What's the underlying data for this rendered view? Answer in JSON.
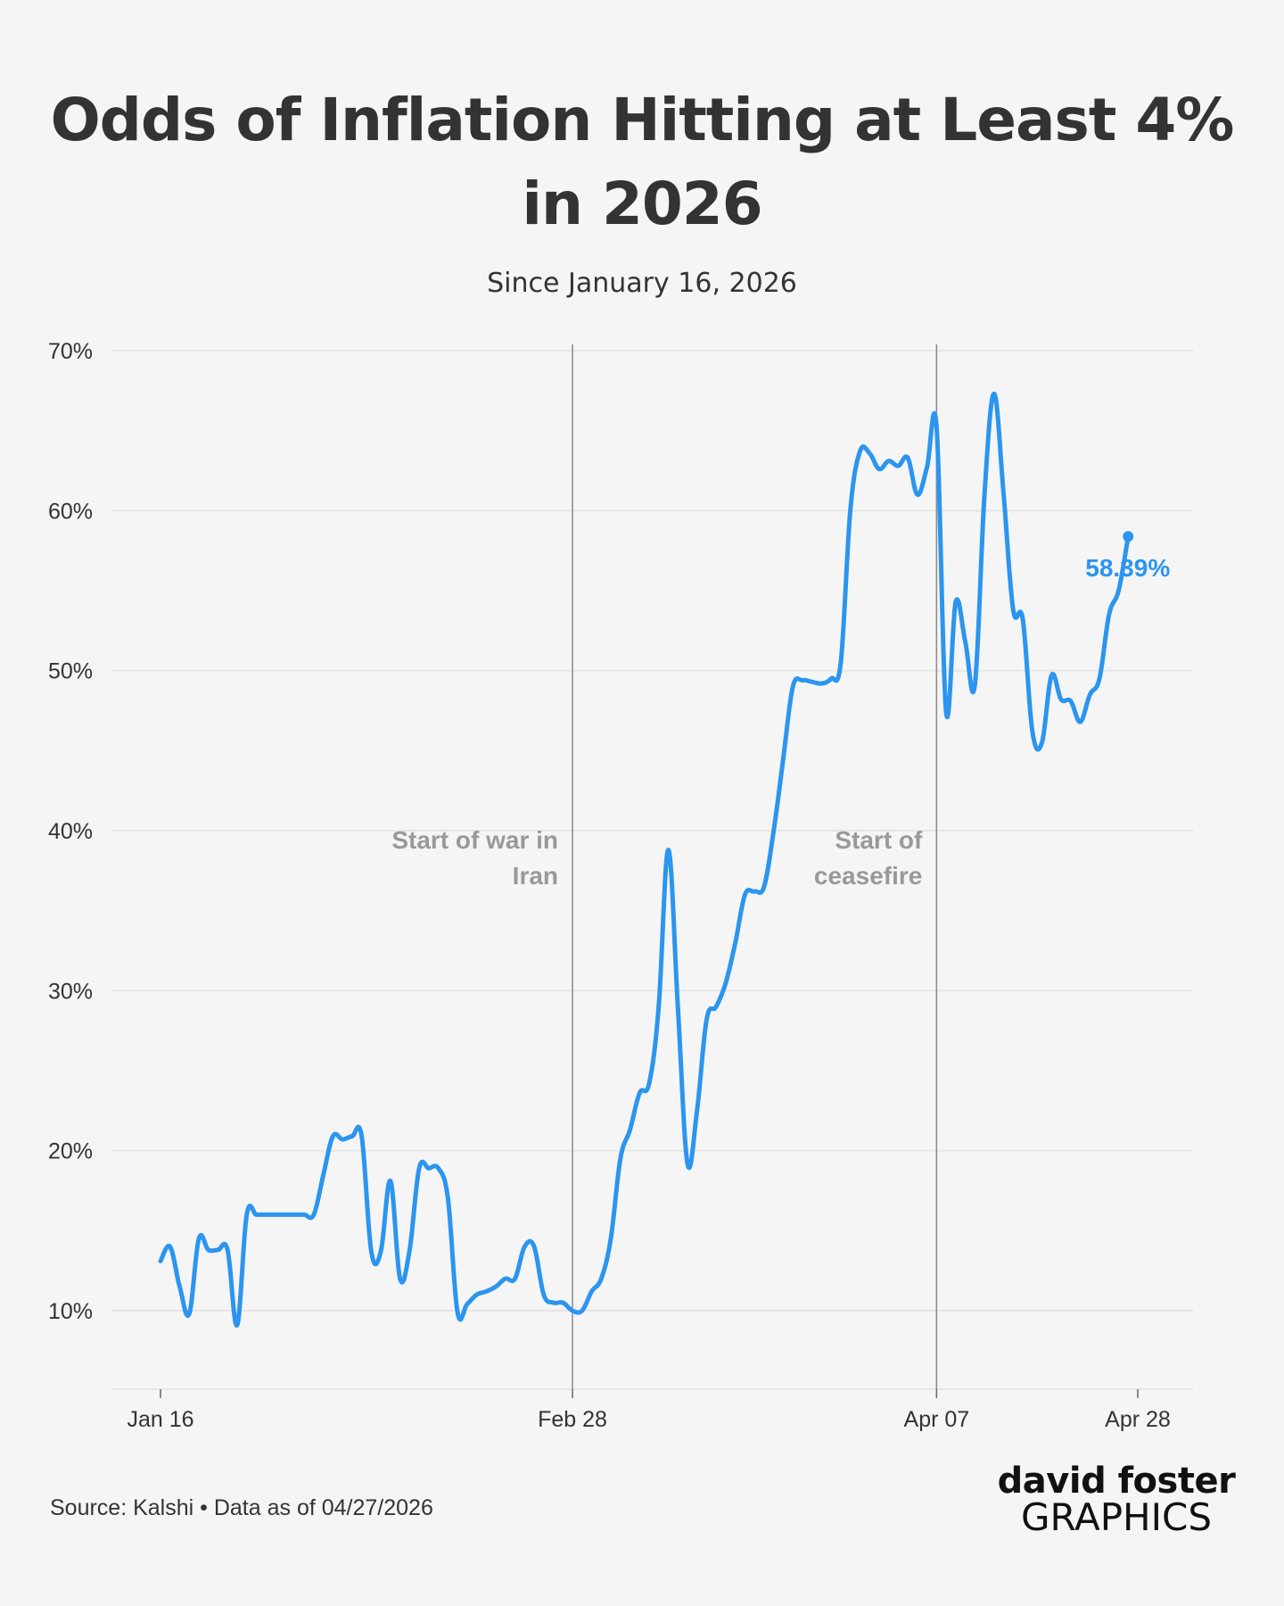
{
  "title": "Odds of Inflation Hitting at Least 4% in 2026",
  "subtitle": "Since January 16, 2026",
  "footer": {
    "source": "Source: Kalshi • Data as of 04/27/2026"
  },
  "brand": {
    "line1": "david foster",
    "line2": "GRAPHICS"
  },
  "colors": {
    "line": "#2b95ef",
    "grid": "#e6e6e6",
    "annotation_text": "#999999",
    "annotation_line": "#8a8a8a",
    "background": "#f5f5f5"
  },
  "chart_data": {
    "type": "line",
    "title": "Odds of Inflation Hitting at Least 4% in 2026",
    "subtitle": "Since January 16, 2026",
    "xlabel": "",
    "ylabel": "",
    "x_range": [
      "2026-01-16",
      "2026-04-28"
    ],
    "ylim": [
      5,
      70
    ],
    "y_ticks": [
      10,
      20,
      30,
      40,
      50,
      60,
      70
    ],
    "y_tick_labels": [
      "10%",
      "20%",
      "30%",
      "40%",
      "50%",
      "60%",
      "70%"
    ],
    "x_ticks": [
      "2026-01-16",
      "2026-02-28",
      "2026-04-07",
      "2026-04-28"
    ],
    "x_tick_labels": [
      "Jan 16",
      "Feb 28",
      "Apr 07",
      "Apr 28"
    ],
    "grid": true,
    "annotations": [
      {
        "date": "2026-02-28",
        "lines": [
          "Start of war in",
          "Iran"
        ]
      },
      {
        "date": "2026-04-07",
        "lines": [
          "Start of",
          "ceasefire"
        ]
      }
    ],
    "end_label": "58.39%",
    "series": [
      {
        "points": [
          [
            "2026-01-16",
            13.1
          ],
          [
            "2026-01-17",
            14.0
          ],
          [
            "2026-01-18",
            11.5
          ],
          [
            "2026-01-19",
            9.8
          ],
          [
            "2026-01-20",
            14.5
          ],
          [
            "2026-01-21",
            13.8
          ],
          [
            "2026-01-22",
            13.8
          ],
          [
            "2026-01-23",
            13.8
          ],
          [
            "2026-01-24",
            9.1
          ],
          [
            "2026-01-25",
            16.0
          ],
          [
            "2026-01-26",
            16.0
          ],
          [
            "2026-01-27",
            16.0
          ],
          [
            "2026-01-28",
            16.0
          ],
          [
            "2026-01-29",
            16.0
          ],
          [
            "2026-01-30",
            16.0
          ],
          [
            "2026-01-31",
            16.0
          ],
          [
            "2026-02-01",
            16.0
          ],
          [
            "2026-02-02",
            18.5
          ],
          [
            "2026-02-03",
            20.9
          ],
          [
            "2026-02-04",
            20.7
          ],
          [
            "2026-02-05",
            20.9
          ],
          [
            "2026-02-06",
            20.9
          ],
          [
            "2026-02-07",
            13.7
          ],
          [
            "2026-02-08",
            13.7
          ],
          [
            "2026-02-09",
            18.1
          ],
          [
            "2026-02-10",
            12.0
          ],
          [
            "2026-02-11",
            13.8
          ],
          [
            "2026-02-12",
            18.9
          ],
          [
            "2026-02-13",
            18.9
          ],
          [
            "2026-02-14",
            18.9
          ],
          [
            "2026-02-15",
            17.0
          ],
          [
            "2026-02-16",
            9.9
          ],
          [
            "2026-02-17",
            10.4
          ],
          [
            "2026-02-18",
            11.0
          ],
          [
            "2026-02-19",
            11.2
          ],
          [
            "2026-02-20",
            11.5
          ],
          [
            "2026-02-21",
            12.0
          ],
          [
            "2026-02-22",
            12.0
          ],
          [
            "2026-02-23",
            14.0
          ],
          [
            "2026-02-24",
            14.0
          ],
          [
            "2026-02-25",
            11.0
          ],
          [
            "2026-02-26",
            10.5
          ],
          [
            "2026-02-27",
            10.5
          ],
          [
            "2026-02-28",
            10.0
          ],
          [
            "2026-03-01",
            10.0
          ],
          [
            "2026-03-02",
            11.2
          ],
          [
            "2026-03-03",
            12.0
          ],
          [
            "2026-03-04",
            14.5
          ],
          [
            "2026-03-05",
            19.5
          ],
          [
            "2026-03-06",
            21.3
          ],
          [
            "2026-03-07",
            23.6
          ],
          [
            "2026-03-08",
            24.2
          ],
          [
            "2026-03-09",
            29.0
          ],
          [
            "2026-03-10",
            38.8
          ],
          [
            "2026-03-11",
            29.0
          ],
          [
            "2026-03-12",
            19.2
          ],
          [
            "2026-03-13",
            22.5
          ],
          [
            "2026-03-14",
            28.2
          ],
          [
            "2026-03-15",
            29.0
          ],
          [
            "2026-03-16",
            30.5
          ],
          [
            "2026-03-17",
            33.0
          ],
          [
            "2026-03-18",
            36.0
          ],
          [
            "2026-03-19",
            36.2
          ],
          [
            "2026-03-20",
            36.5
          ],
          [
            "2026-03-21",
            40.0
          ],
          [
            "2026-03-22",
            44.5
          ],
          [
            "2026-03-23",
            49.0
          ],
          [
            "2026-03-24",
            49.4
          ],
          [
            "2026-03-25",
            49.3
          ],
          [
            "2026-03-26",
            49.2
          ],
          [
            "2026-03-27",
            49.5
          ],
          [
            "2026-03-28",
            50.5
          ],
          [
            "2026-03-29",
            60.0
          ],
          [
            "2026-03-30",
            63.7
          ],
          [
            "2026-03-31",
            63.6
          ],
          [
            "2026-04-01",
            62.6
          ],
          [
            "2026-04-02",
            63.1
          ],
          [
            "2026-04-03",
            62.8
          ],
          [
            "2026-04-04",
            63.3
          ],
          [
            "2026-04-05",
            61.0
          ],
          [
            "2026-04-06",
            62.7
          ],
          [
            "2026-04-07",
            65.2
          ],
          [
            "2026-04-08",
            47.4
          ],
          [
            "2026-04-09",
            54.3
          ],
          [
            "2026-04-10",
            51.8
          ],
          [
            "2026-04-11",
            49.1
          ],
          [
            "2026-04-12",
            61.0
          ],
          [
            "2026-04-13",
            67.3
          ],
          [
            "2026-04-14",
            61.0
          ],
          [
            "2026-04-15",
            53.8
          ],
          [
            "2026-04-16",
            53.2
          ],
          [
            "2026-04-17",
            46.2
          ],
          [
            "2026-04-18",
            45.5
          ],
          [
            "2026-04-19",
            49.7
          ],
          [
            "2026-04-20",
            48.2
          ],
          [
            "2026-04-21",
            48.1
          ],
          [
            "2026-04-22",
            46.8
          ],
          [
            "2026-04-23",
            48.5
          ],
          [
            "2026-04-24",
            49.5
          ],
          [
            "2026-04-25",
            53.5
          ],
          [
            "2026-04-26",
            55.0
          ],
          [
            "2026-04-27",
            58.39
          ]
        ]
      }
    ]
  }
}
